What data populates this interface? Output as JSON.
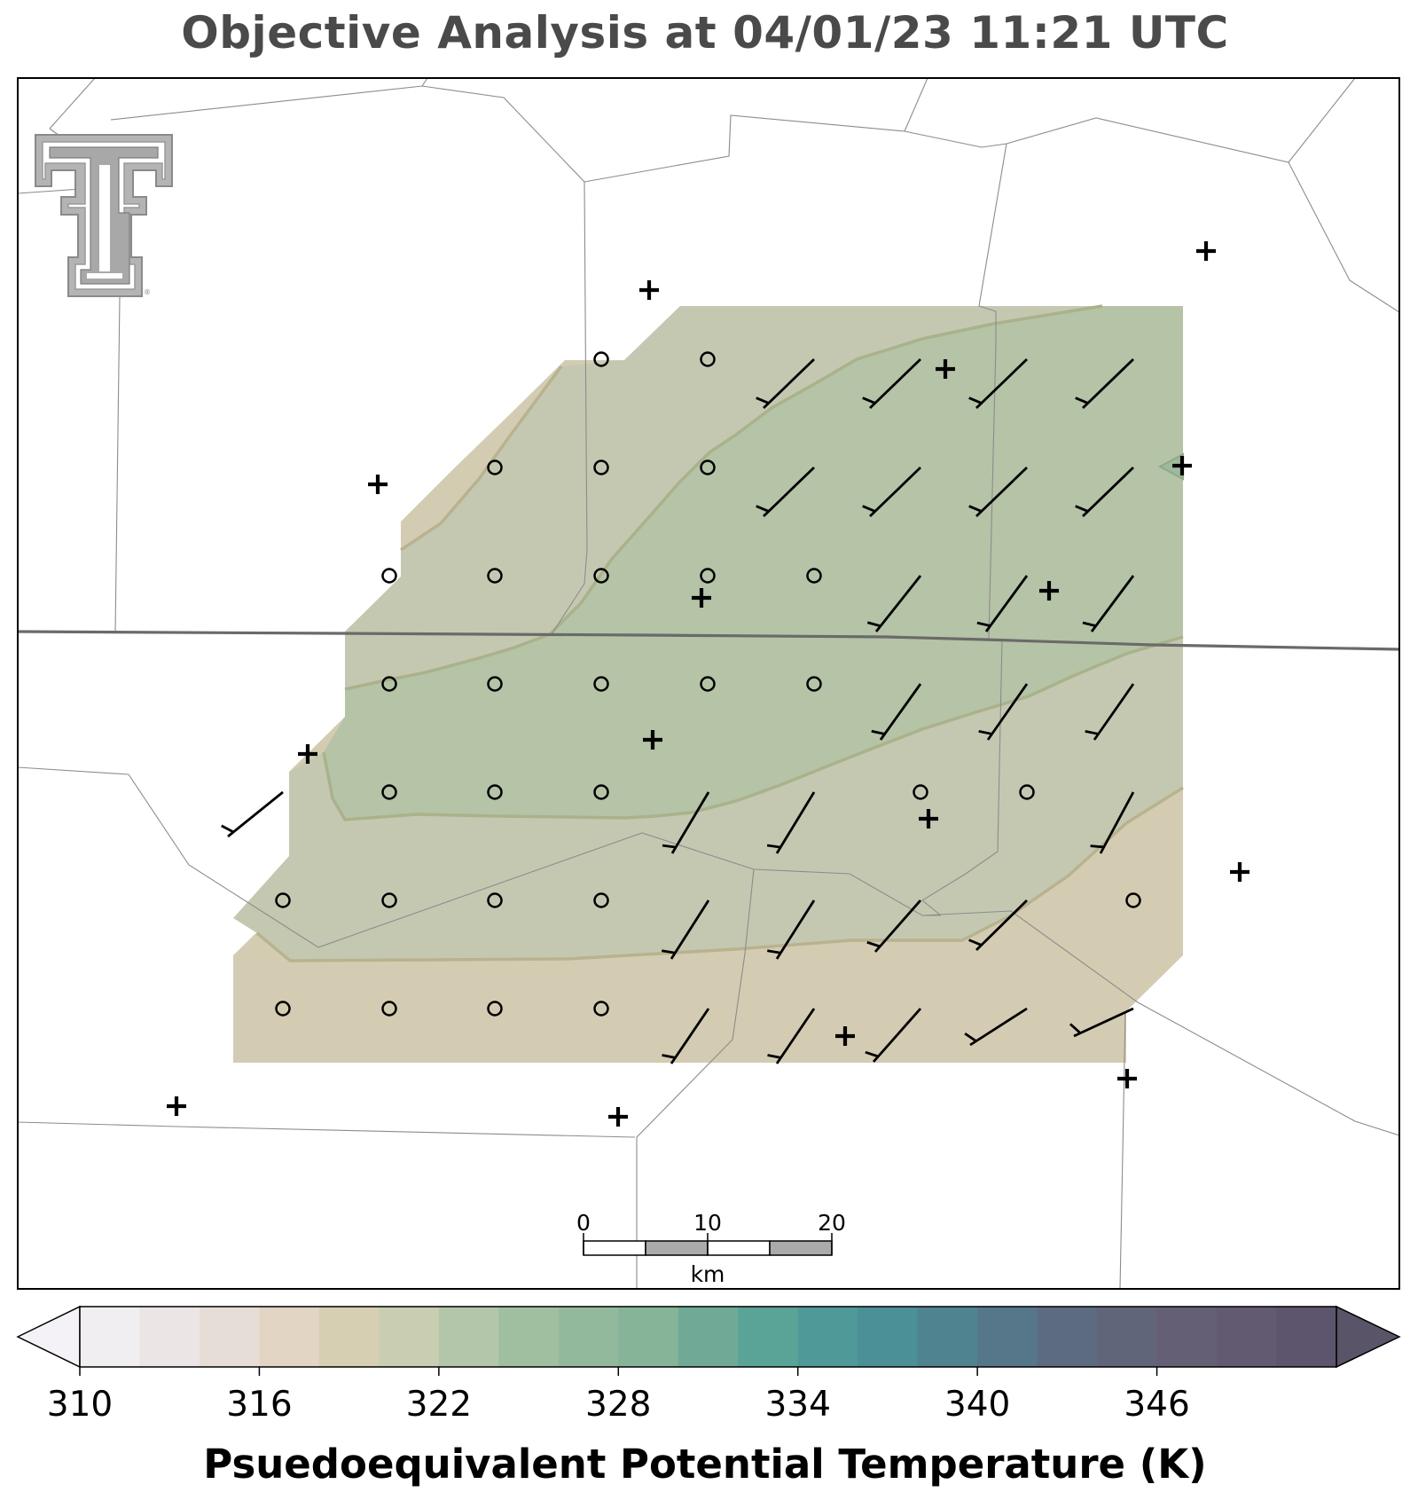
{
  "title": "Objective Analysis at 04/01/23 11:21 UTC",
  "colorbar": {
    "label": "Psuedoequivalent Potential Temperature (K)",
    "ticks": [
      "310",
      "316",
      "322",
      "328",
      "334",
      "340",
      "346"
    ],
    "min": 310,
    "max": 352,
    "step": 2,
    "extend": "both",
    "colors": [
      "#f0eef1",
      "#ebe6e5",
      "#e6ddd6",
      "#e2d5c4",
      "#d6cfb2",
      "#c9cdb1",
      "#b4c6aa",
      "#a0bea0",
      "#93b99c",
      "#86b499",
      "#70aa97",
      "#5aa397",
      "#4f9a98",
      "#4b9097",
      "#4f8390",
      "#567689",
      "#5c6b82",
      "#616579",
      "#645f74",
      "#615a70",
      "#5d556d"
    ],
    "under_color": "#f4f2f6",
    "over_color": "#5a5468"
  },
  "map": {
    "field_colors": {
      "band_318_320": "#d3ccb2",
      "band_320_322": "#c5c8b1",
      "band_322_324": "#b5c3a6"
    },
    "logo": "texas-tech-double-t-logo",
    "scale_bar": {
      "labels": [
        "0",
        "10",
        "20"
      ],
      "unit": "km"
    },
    "calm_station_symbol": "circle",
    "missing_station_symbol": "plus",
    "wind_barb_direction": "southwest",
    "wind_barbs_half_flag_count": 1
  }
}
